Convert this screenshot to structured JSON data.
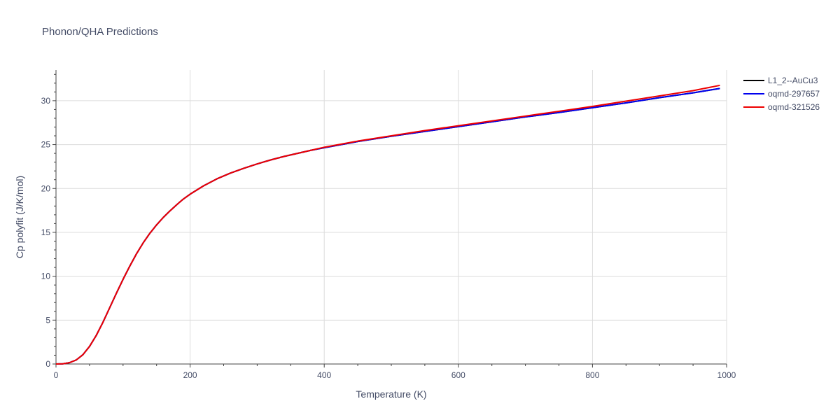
{
  "chart_data": {
    "type": "line",
    "title": "Phonon/QHA Predictions",
    "xlabel": "Temperature (K)",
    "ylabel": "Cp polyfit (J/K/mol)",
    "xlim": [
      0,
      1000
    ],
    "ylim": [
      0,
      33.5
    ],
    "x_ticks": [
      0,
      200,
      400,
      600,
      800,
      1000
    ],
    "y_ticks": [
      0,
      5,
      10,
      15,
      20,
      25,
      30
    ],
    "grid": true,
    "legend_position": "top-right",
    "series": [
      {
        "name": "L1_2--AuCu3",
        "color": "#000000",
        "x": [
          0,
          10,
          20,
          30,
          40,
          50,
          60,
          70,
          80,
          90,
          100,
          110,
          120,
          130,
          140,
          150,
          160,
          170,
          180,
          190,
          200,
          220,
          240,
          260,
          280,
          300,
          320,
          340,
          360,
          380,
          400,
          450,
          500,
          550,
          600,
          650,
          700,
          750,
          800,
          850,
          900,
          950,
          990
        ],
        "y": [
          0,
          0.02,
          0.15,
          0.45,
          1.05,
          2.0,
          3.25,
          4.75,
          6.4,
          8.05,
          9.65,
          11.15,
          12.55,
          13.8,
          14.9,
          15.85,
          16.7,
          17.45,
          18.15,
          18.8,
          19.35,
          20.3,
          21.1,
          21.75,
          22.3,
          22.8,
          23.25,
          23.65,
          24.0,
          24.35,
          24.65,
          25.35,
          25.95,
          26.5,
          27.05,
          27.6,
          28.15,
          28.65,
          29.2,
          29.75,
          30.35,
          30.9,
          31.4
        ]
      },
      {
        "name": "oqmd-297657",
        "color": "#0000ee",
        "x": [
          0,
          10,
          20,
          30,
          40,
          50,
          60,
          70,
          80,
          90,
          100,
          110,
          120,
          130,
          140,
          150,
          160,
          170,
          180,
          190,
          200,
          220,
          240,
          260,
          280,
          300,
          320,
          340,
          360,
          380,
          400,
          450,
          500,
          550,
          600,
          650,
          700,
          750,
          800,
          850,
          900,
          950,
          990
        ],
        "y": [
          0,
          0.02,
          0.15,
          0.45,
          1.05,
          2.0,
          3.25,
          4.75,
          6.4,
          8.05,
          9.65,
          11.15,
          12.55,
          13.8,
          14.9,
          15.85,
          16.7,
          17.45,
          18.15,
          18.8,
          19.35,
          20.3,
          21.1,
          21.75,
          22.3,
          22.8,
          23.25,
          23.65,
          24.0,
          24.35,
          24.65,
          25.35,
          25.95,
          26.5,
          27.05,
          27.6,
          28.15,
          28.65,
          29.2,
          29.75,
          30.35,
          30.9,
          31.4
        ]
      },
      {
        "name": "oqmd-321526",
        "color": "#ee0000",
        "x": [
          0,
          10,
          20,
          30,
          40,
          50,
          60,
          70,
          80,
          90,
          100,
          110,
          120,
          130,
          140,
          150,
          160,
          170,
          180,
          190,
          200,
          220,
          240,
          260,
          280,
          300,
          320,
          340,
          360,
          380,
          400,
          450,
          500,
          550,
          600,
          650,
          700,
          750,
          800,
          850,
          900,
          950,
          990
        ],
        "y": [
          0,
          0.02,
          0.15,
          0.45,
          1.05,
          2.0,
          3.25,
          4.75,
          6.4,
          8.05,
          9.65,
          11.15,
          12.55,
          13.8,
          14.9,
          15.85,
          16.7,
          17.45,
          18.15,
          18.8,
          19.35,
          20.3,
          21.1,
          21.75,
          22.3,
          22.8,
          23.25,
          23.65,
          24.0,
          24.35,
          24.7,
          25.4,
          26.0,
          26.6,
          27.15,
          27.7,
          28.25,
          28.8,
          29.35,
          29.95,
          30.55,
          31.15,
          31.75
        ]
      }
    ]
  }
}
